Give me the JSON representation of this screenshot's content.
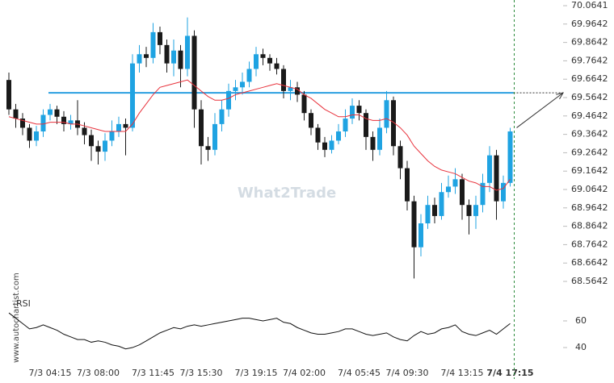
{
  "chart_data": [
    {
      "type": "candlestick",
      "watermark": "What2Trade",
      "source": "www.autochartist.com",
      "categories": [
        null,
        null,
        null,
        null,
        null,
        null,
        "7/3 04:15",
        null,
        null,
        null,
        null,
        null,
        null,
        "7/3 08:00",
        null,
        null,
        null,
        null,
        null,
        null,
        null,
        "7/3 11:45",
        null,
        null,
        null,
        null,
        null,
        null,
        "7/3 15:30",
        null,
        null,
        null,
        null,
        null,
        null,
        null,
        "7/3 19:15",
        null,
        null,
        null,
        null,
        null,
        null,
        "7/4 02:00",
        null,
        null,
        null,
        null,
        null,
        null,
        null,
        "7/4 05:45",
        null,
        null,
        null,
        null,
        null,
        null,
        "7/4 09:30",
        null,
        null,
        null,
        null,
        null,
        null,
        null,
        "7/4 13:15",
        null,
        null,
        null,
        null,
        null,
        null,
        "7/4 17:15"
      ],
      "open": [
        69.66,
        69.5,
        69.45,
        69.4,
        69.33,
        69.38,
        69.47,
        69.5,
        69.46,
        69.42,
        69.44,
        69.4,
        69.36,
        69.3,
        69.27,
        69.33,
        69.38,
        69.42,
        69.4,
        69.75,
        69.8,
        69.78,
        69.92,
        69.85,
        69.75,
        69.82,
        69.72,
        69.9,
        69.5,
        69.3,
        69.28,
        69.42,
        69.5,
        69.6,
        69.62,
        69.65,
        69.72,
        69.8,
        69.78,
        69.75,
        69.72,
        69.6,
        69.62,
        69.58,
        69.48,
        69.4,
        69.32,
        69.28,
        69.33,
        69.38,
        69.45,
        69.52,
        69.48,
        69.35,
        69.28,
        69.4,
        69.55,
        69.3,
        69.18,
        69.0,
        68.75,
        68.88,
        68.98,
        68.92,
        69.05,
        69.08,
        69.12,
        68.98,
        68.92,
        68.98,
        69.1,
        69.25,
        69.0,
        69.1
      ],
      "high": [
        69.7,
        69.53,
        69.48,
        69.42,
        69.41,
        69.5,
        69.53,
        69.52,
        69.49,
        69.47,
        69.55,
        69.43,
        69.39,
        69.33,
        69.37,
        69.44,
        69.46,
        69.45,
        69.8,
        69.85,
        69.84,
        69.97,
        69.95,
        69.88,
        69.88,
        69.85,
        70.0,
        69.93,
        69.55,
        69.35,
        69.48,
        69.55,
        69.64,
        69.66,
        69.7,
        69.76,
        69.84,
        69.83,
        69.8,
        69.78,
        69.74,
        69.66,
        69.65,
        69.6,
        69.5,
        69.42,
        69.35,
        69.36,
        69.42,
        69.5,
        69.56,
        69.55,
        69.5,
        69.38,
        69.45,
        69.6,
        69.57,
        69.33,
        69.22,
        69.03,
        68.93,
        69.03,
        69.02,
        69.1,
        69.14,
        69.18,
        69.15,
        69.01,
        69.03,
        69.15,
        69.3,
        69.28,
        69.14,
        69.4
      ],
      "low": [
        69.47,
        69.4,
        69.36,
        69.29,
        69.3,
        69.35,
        69.44,
        69.42,
        69.38,
        69.39,
        69.36,
        69.31,
        69.22,
        69.2,
        69.22,
        69.3,
        69.35,
        69.25,
        69.38,
        69.7,
        69.73,
        69.75,
        69.8,
        69.7,
        69.68,
        69.62,
        69.68,
        69.4,
        69.2,
        69.22,
        69.25,
        69.38,
        69.46,
        69.55,
        69.58,
        69.62,
        69.68,
        69.74,
        69.71,
        69.69,
        69.56,
        69.55,
        69.54,
        69.44,
        69.36,
        69.28,
        69.24,
        69.26,
        69.31,
        69.35,
        69.42,
        69.44,
        69.28,
        69.22,
        69.25,
        69.37,
        69.25,
        69.12,
        68.95,
        68.58,
        68.7,
        68.85,
        68.88,
        68.9,
        69.02,
        69.04,
        68.9,
        68.82,
        68.85,
        68.94,
        69.05,
        68.9,
        68.96,
        69.08
      ],
      "close": [
        69.5,
        69.45,
        69.4,
        69.33,
        69.38,
        69.47,
        69.5,
        69.46,
        69.42,
        69.44,
        69.4,
        69.36,
        69.3,
        69.27,
        69.33,
        69.38,
        69.42,
        69.4,
        69.75,
        69.8,
        69.78,
        69.92,
        69.85,
        69.75,
        69.82,
        69.72,
        69.9,
        69.5,
        69.3,
        69.28,
        69.42,
        69.5,
        69.6,
        69.62,
        69.65,
        69.72,
        69.8,
        69.78,
        69.75,
        69.72,
        69.6,
        69.62,
        69.58,
        69.48,
        69.4,
        69.32,
        69.28,
        69.33,
        69.38,
        69.45,
        69.52,
        69.48,
        69.35,
        69.28,
        69.4,
        69.55,
        69.3,
        69.18,
        69.0,
        68.75,
        68.88,
        68.98,
        68.92,
        69.05,
        69.08,
        69.12,
        68.98,
        68.92,
        68.98,
        69.1,
        69.25,
        69.0,
        69.1,
        69.38
      ],
      "up_color": "#1fa3e2",
      "down_color": "#1a1a1a",
      "ma": {
        "color": "#e8323c",
        "values": [
          69.46,
          69.45,
          69.44,
          69.43,
          69.42,
          69.42,
          69.43,
          69.43,
          69.43,
          69.42,
          69.42,
          69.41,
          69.4,
          69.39,
          69.38,
          69.38,
          69.38,
          69.38,
          69.42,
          69.48,
          69.53,
          69.58,
          69.62,
          69.63,
          69.64,
          69.65,
          69.66,
          69.63,
          69.6,
          69.57,
          69.55,
          69.55,
          69.56,
          69.58,
          69.59,
          69.6,
          69.61,
          69.62,
          69.63,
          69.64,
          69.63,
          69.62,
          69.61,
          69.58,
          69.56,
          69.53,
          69.5,
          69.48,
          69.46,
          69.46,
          69.47,
          69.47,
          69.45,
          69.44,
          69.44,
          69.45,
          69.43,
          69.4,
          69.36,
          69.3,
          69.26,
          69.22,
          69.19,
          69.17,
          69.16,
          69.15,
          69.13,
          69.11,
          69.1,
          69.08,
          69.08,
          69.06,
          69.07,
          69.12
        ]
      },
      "level": 69.59,
      "level_color": "#2a9fe0",
      "ylim": [
        68.516,
        70.095
      ],
      "yticks": [
        70.0641,
        69.9642,
        69.8642,
        69.7642,
        69.6642,
        69.5642,
        69.4642,
        69.3642,
        69.2642,
        69.1642,
        69.0642,
        68.9642,
        68.8642,
        68.7642,
        68.6642,
        68.5642
      ]
    },
    {
      "type": "line",
      "title": "RSI",
      "color": "#111111",
      "values": [
        66,
        62,
        58,
        54,
        55,
        57,
        55,
        53,
        50,
        48,
        46,
        46,
        44,
        45,
        44,
        42,
        41,
        39,
        40,
        42,
        45,
        48,
        51,
        53,
        55,
        54,
        56,
        57,
        56,
        57,
        58,
        59,
        60,
        61,
        62,
        62,
        61,
        60,
        61,
        62,
        59,
        58,
        55,
        53,
        51,
        50,
        50,
        51,
        52,
        54,
        54,
        52,
        50,
        49,
        50,
        51,
        48,
        46,
        45,
        49,
        52,
        50,
        51,
        54,
        55,
        57,
        52,
        50,
        49,
        51,
        53,
        50,
        54,
        58
      ],
      "ylim": [
        25.5,
        73.9
      ],
      "yticks": [
        40,
        60
      ]
    }
  ]
}
